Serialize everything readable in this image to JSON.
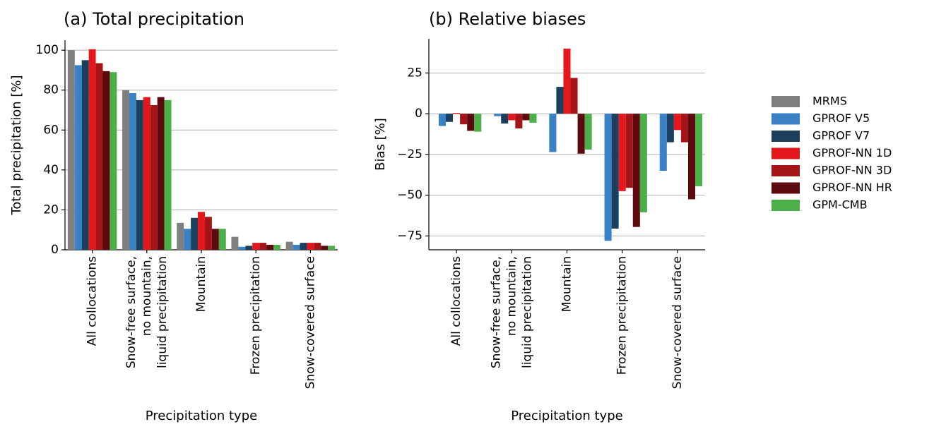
{
  "chart_data": [
    {
      "type": "bar",
      "title": "(a) Total precipitation",
      "x_label": "Precipitation type",
      "y_label": "Total precipitation [%]",
      "categories": [
        "All collocations",
        [
          "Snow-free surface,",
          "no mountain,",
          "liquid precipitation"
        ],
        "Mountain",
        "Frozen precipitation",
        "Snow-covered surface"
      ],
      "series": [
        {
          "name": "MRMS",
          "color": "#7f7f7f",
          "values": [
            100,
            80,
            13.5,
            6.5,
            4
          ]
        },
        {
          "name": "GPROF V5",
          "color": "#3a80c4",
          "values": [
            92.5,
            78.5,
            10.5,
            1.5,
            2.5
          ]
        },
        {
          "name": "GPROF V7",
          "color": "#1c3f5e",
          "values": [
            95,
            75,
            16,
            2,
            3.5
          ]
        },
        {
          "name": "GPROF-NN 1D",
          "color": "#e4181c",
          "values": [
            100.5,
            76.5,
            19,
            3.5,
            3.5
          ]
        },
        {
          "name": "GPROF-NN 3D",
          "color": "#a31519",
          "values": [
            93.5,
            72.5,
            16.5,
            3.5,
            3.5
          ]
        },
        {
          "name": "GPROF-NN HR",
          "color": "#5c0a0d",
          "values": [
            89.5,
            76.5,
            10.5,
            2.5,
            2
          ]
        },
        {
          "name": "GPM-CMB",
          "color": "#4daf4a",
          "values": [
            89,
            75,
            10.5,
            2.5,
            2
          ]
        }
      ],
      "ylim": [
        0,
        105
      ],
      "yticks": [
        0,
        20,
        40,
        60,
        80,
        100
      ],
      "grid": true,
      "legend": "right"
    },
    {
      "type": "bar",
      "title": "(b) Relative biases",
      "x_label": "Precipitation type",
      "y_label": "Bias [%]",
      "categories": [
        "All collocations",
        [
          "Snow-free surface,",
          "no mountain,",
          "liquid precipitation"
        ],
        "Mountain",
        "Frozen precipitation",
        "Snow-covered surface"
      ],
      "series": [
        {
          "color": "#7f7f7f",
          "values": [
            0,
            0,
            0,
            0,
            0
          ]
        },
        {
          "color": "#3a80c4",
          "values": [
            -7.5,
            -1.5,
            -23.5,
            -78,
            -35
          ]
        },
        {
          "color": "#1c3f5e",
          "values": [
            -5,
            -6,
            16.5,
            -70.5,
            -17.5
          ]
        },
        {
          "color": "#e4181c",
          "values": [
            0.5,
            -4,
            40,
            -47.5,
            -10
          ]
        },
        {
          "color": "#a31519",
          "values": [
            -6.5,
            -9,
            22,
            -45.5,
            -17.5
          ]
        },
        {
          "color": "#5c0a0d",
          "values": [
            -10.5,
            -4,
            -24.5,
            -69.5,
            -52.5
          ]
        },
        {
          "color": "#4daf4a",
          "values": [
            -11,
            -5.5,
            -22,
            -60.5,
            -44.5
          ]
        }
      ],
      "ylim": [
        -83.5,
        46
      ],
      "yticks": [
        {
          "value": -75,
          "label": "−75"
        },
        {
          "value": -50,
          "label": "−50"
        },
        {
          "value": -25,
          "label": "−25"
        },
        0,
        25
      ],
      "grid": true
    }
  ]
}
